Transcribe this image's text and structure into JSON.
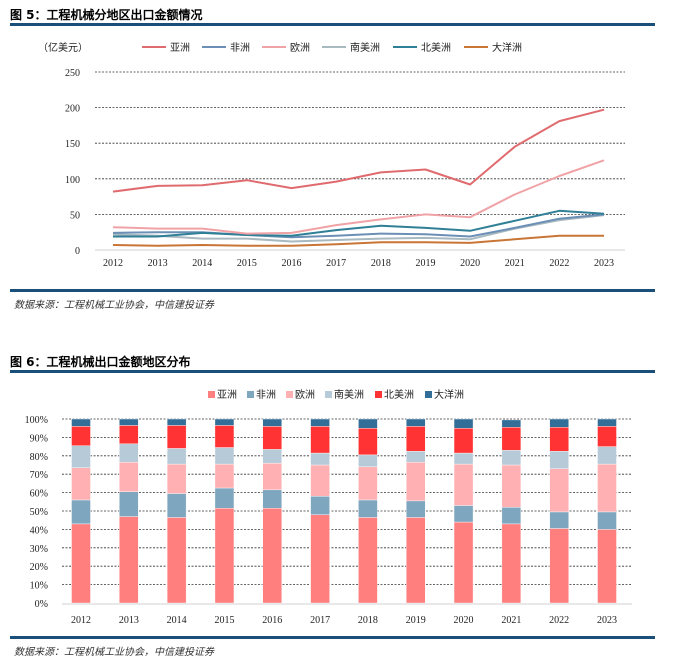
{
  "figures": [
    {
      "title": "图 5：工程机械分地区出口金额情况",
      "source": "数据来源：工程机械工业协会，中信建投证券"
    },
    {
      "title": "图 6：工程机械出口金额地区分布",
      "source": "数据来源：工程机械工业协会，中信建投证券"
    }
  ],
  "chart_data": [
    {
      "type": "line",
      "title": "工程机械分地区出口金额情况",
      "ylabel": "（亿美元）",
      "xlabel": "",
      "x": [
        "2012",
        "2013",
        "2014",
        "2015",
        "2016",
        "2017",
        "2018",
        "2019",
        "2020",
        "2021",
        "2022",
        "2023"
      ],
      "ylim": [
        0,
        250
      ],
      "yticks": [
        "0",
        "50",
        "100",
        "150",
        "200",
        "250"
      ],
      "grid": "horizontal-dashed",
      "legend_position": "top",
      "series": [
        {
          "name": "亚洲",
          "color": "#e06b6f",
          "values": [
            82,
            90,
            91,
            98,
            87,
            96,
            109,
            113,
            92,
            145,
            181,
            197
          ]
        },
        {
          "name": "非洲",
          "color": "#6b8fb5",
          "values": [
            24,
            25,
            25,
            21,
            18,
            20,
            23,
            22,
            19,
            31,
            44,
            50
          ]
        },
        {
          "name": "欧洲",
          "color": "#f0a3a6",
          "values": [
            32,
            30,
            30,
            23,
            24,
            35,
            43,
            50,
            46,
            78,
            104,
            126
          ]
        },
        {
          "name": "南美洲",
          "color": "#a9b9c0",
          "values": [
            22,
            20,
            16,
            16,
            12,
            14,
            16,
            17,
            15,
            30,
            42,
            49
          ]
        },
        {
          "name": "北美洲",
          "color": "#2f7f96",
          "values": [
            19,
            19,
            24,
            21,
            20,
            28,
            34,
            31,
            27,
            41,
            55,
            51
          ]
        },
        {
          "name": "大洋洲",
          "color": "#c87536",
          "values": [
            7,
            6,
            7,
            6,
            6,
            8,
            11,
            11,
            10,
            15,
            20,
            20
          ]
        }
      ]
    },
    {
      "type": "bar",
      "stacked": true,
      "title": "工程机械出口金额地区分布",
      "categories": [
        "2012",
        "2013",
        "2014",
        "2015",
        "2016",
        "2017",
        "2018",
        "2019",
        "2020",
        "2021",
        "2022",
        "2023"
      ],
      "ylim": [
        0,
        100
      ],
      "yticks": [
        "0%",
        "10%",
        "20%",
        "30%",
        "40%",
        "50%",
        "60%",
        "70%",
        "80%",
        "90%",
        "100%"
      ],
      "grid": "horizontal-dashed",
      "legend_position": "top",
      "series": [
        {
          "name": "亚洲",
          "color": "#ff7f7f",
          "values": [
            43,
            47,
            46.5,
            51.5,
            51.5,
            48,
            46.5,
            46.5,
            44,
            43,
            40.5,
            40
          ]
        },
        {
          "name": "非洲",
          "color": "#7fa6bf",
          "values": [
            13,
            13.5,
            13,
            11,
            10,
            10,
            9.5,
            9,
            9,
            9,
            9,
            9.5
          ]
        },
        {
          "name": "欧洲",
          "color": "#ffb0b3",
          "values": [
            17.5,
            16,
            16,
            13,
            14.5,
            17,
            18,
            21,
            22.5,
            23,
            23.5,
            26
          ]
        },
        {
          "name": "南美洲",
          "color": "#b7cad8",
          "values": [
            12,
            10,
            8.5,
            9,
            7.5,
            6.5,
            6.5,
            6,
            6,
            8,
            9.5,
            9.5
          ]
        },
        {
          "name": "北美洲",
          "color": "#ff3333",
          "values": [
            10.5,
            10,
            12.5,
            12,
            12.5,
            14.5,
            14.5,
            13.5,
            13.5,
            12.5,
            13,
            11
          ]
        },
        {
          "name": "大洋洲",
          "color": "#336e99",
          "values": [
            4,
            3.5,
            3.5,
            3.5,
            4,
            4,
            5,
            4,
            5,
            4,
            4.5,
            4
          ]
        }
      ]
    }
  ]
}
